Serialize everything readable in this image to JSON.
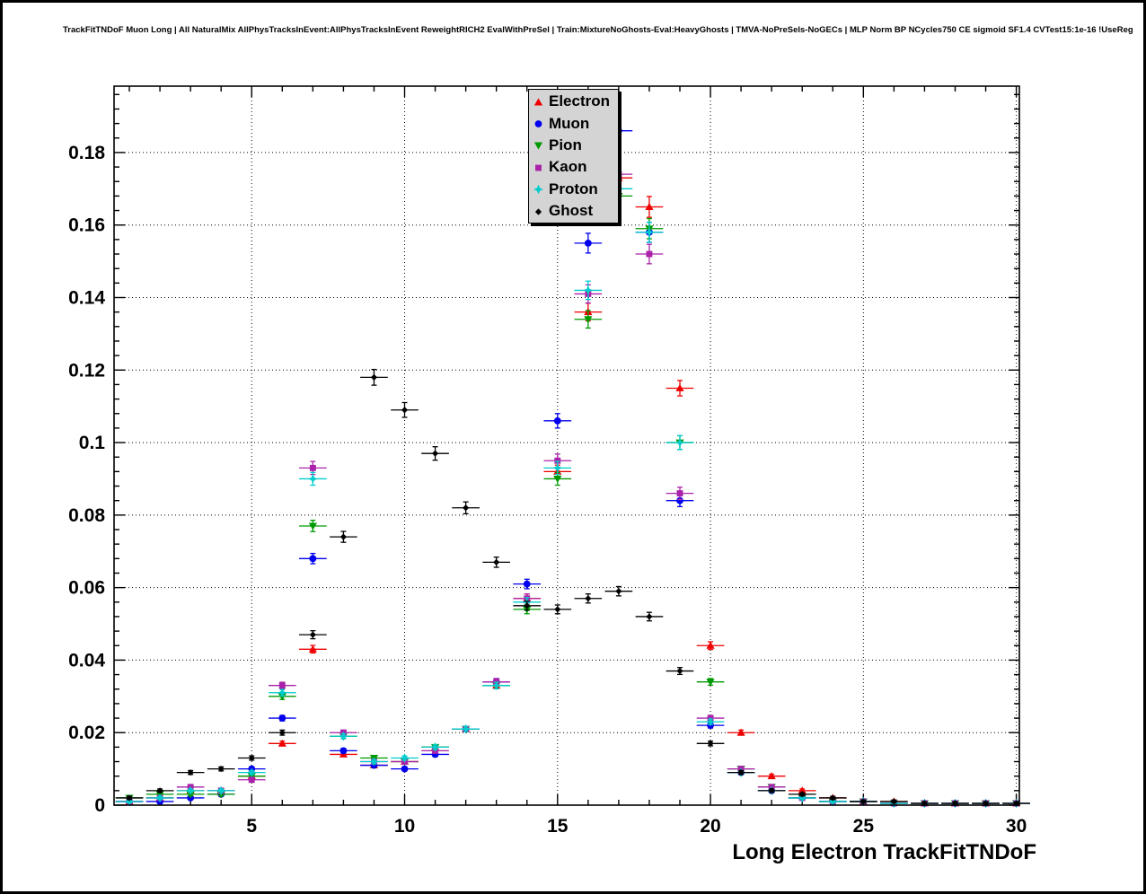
{
  "chart_data": {
    "type": "scatter",
    "title": "TrackFitTNDoF Muon Long | All NaturalMix AllPhysTracksInEvent:AllPhysTracksInEvent ReweightRICH2 EvalWithPreSel | Train:MixtureNoGhosts-Eval:HeavyGhosts | TMVA-NoPreSels-NoGECs | MLP Norm BP NCycles750 CE sigmoid SF1.4 CVTest15:1e-16 !UseReg",
    "xlabel": "Long Electron TrackFitTNDoF",
    "ylabel": "",
    "xlim": [
      0.5,
      30.1
    ],
    "ylim": [
      0,
      0.1983
    ],
    "grid": "dotted",
    "x_ticks": {
      "values": [
        5,
        10,
        15,
        20,
        25,
        30
      ],
      "labels": [
        "5",
        "10",
        "15",
        "20",
        "25",
        "30"
      ],
      "minor_step": 1
    },
    "y_ticks": {
      "values": [
        0,
        0.02,
        0.04,
        0.06,
        0.08,
        0.1,
        0.12,
        0.14,
        0.16,
        0.18
      ],
      "labels": [
        "0",
        "0.02",
        "0.04",
        "0.06",
        "0.08",
        "0.1",
        "0.12",
        "0.14",
        "0.16",
        "0.18"
      ],
      "minor_step": 0.004
    },
    "x": [
      1,
      2,
      3,
      4,
      5,
      6,
      7,
      8,
      9,
      10,
      11,
      12,
      13,
      14,
      15,
      16,
      17,
      18,
      19,
      20,
      21,
      22,
      23,
      24,
      25,
      26,
      27,
      28,
      29,
      30
    ],
    "series": [
      {
        "name": "Electron",
        "color": "#ee0000",
        "marker": "triangle-up",
        "values": [
          0.001,
          0.002,
          0.004,
          0.004,
          0.008,
          0.017,
          0.043,
          0.014,
          0.011,
          0.012,
          0.016,
          0.021,
          0.033,
          0.057,
          0.092,
          0.136,
          0.173,
          0.165,
          0.115,
          0.044,
          0.02,
          0.008,
          0.004,
          0.002,
          0.001,
          0.001,
          0.0005,
          0.0005,
          0.0005,
          0.0005
        ]
      },
      {
        "name": "Muon",
        "color": "#0000ee",
        "marker": "circle",
        "values": [
          0.001,
          0.001,
          0.002,
          0.003,
          0.01,
          0.024,
          0.068,
          0.015,
          0.011,
          0.01,
          0.014,
          0.021,
          0.034,
          0.061,
          0.106,
          0.155,
          0.186,
          0.158,
          0.084,
          0.022,
          0.009,
          0.004,
          0.002,
          0.001,
          0.001,
          0.0005,
          0.0005,
          0.0005,
          0.0005,
          0.0005
        ]
      },
      {
        "name": "Pion",
        "color": "#009900",
        "marker": "triangle-down",
        "values": [
          0.002,
          0.003,
          0.003,
          0.003,
          0.008,
          0.03,
          0.077,
          0.019,
          0.013,
          0.012,
          0.016,
          0.021,
          0.033,
          0.054,
          0.09,
          0.134,
          0.168,
          0.159,
          0.1,
          0.034,
          0.01,
          0.005,
          0.002,
          0.001,
          0.001,
          0.0005,
          0.0005,
          0.0005,
          0.0005,
          0.0005
        ]
      },
      {
        "name": "Kaon",
        "color": "#aa22aa",
        "marker": "square",
        "values": [
          0.001,
          0.002,
          0.005,
          0.004,
          0.007,
          0.033,
          0.093,
          0.02,
          0.012,
          0.012,
          0.015,
          0.021,
          0.034,
          0.057,
          0.095,
          0.141,
          0.174,
          0.152,
          0.086,
          0.024,
          0.01,
          0.005,
          0.002,
          0.001,
          0.001,
          0.0005,
          0.0005,
          0.0005,
          0.0005,
          0.0005
        ]
      },
      {
        "name": "Proton",
        "color": "#00cccc",
        "marker": "star",
        "values": [
          0.001,
          0.002,
          0.004,
          0.004,
          0.009,
          0.031,
          0.09,
          0.019,
          0.012,
          0.013,
          0.016,
          0.021,
          0.033,
          0.056,
          0.093,
          0.142,
          0.17,
          0.158,
          0.1,
          0.023,
          0.009,
          0.004,
          0.002,
          0.001,
          0.001,
          0.0005,
          0.0005,
          0.0005,
          0.0005,
          0.0005
        ]
      },
      {
        "name": "Ghost",
        "color": "#000000",
        "marker": "diamond",
        "values": [
          0.002,
          0.004,
          0.009,
          0.01,
          0.013,
          0.02,
          0.047,
          0.074,
          0.118,
          0.109,
          0.097,
          0.082,
          0.067,
          0.055,
          0.054,
          0.057,
          0.059,
          0.052,
          0.037,
          0.017,
          0.009,
          0.004,
          0.003,
          0.002,
          0.001,
          0.001,
          0.0005,
          0.0005,
          0.0005,
          0.0005
        ]
      }
    ],
    "legend": {
      "position": "top-center",
      "fill": "#d4d4d4",
      "border_color": "#000000",
      "entries": [
        "Electron",
        "Muon",
        "Pion",
        "Kaon",
        "Proton",
        "Ghost"
      ]
    }
  }
}
